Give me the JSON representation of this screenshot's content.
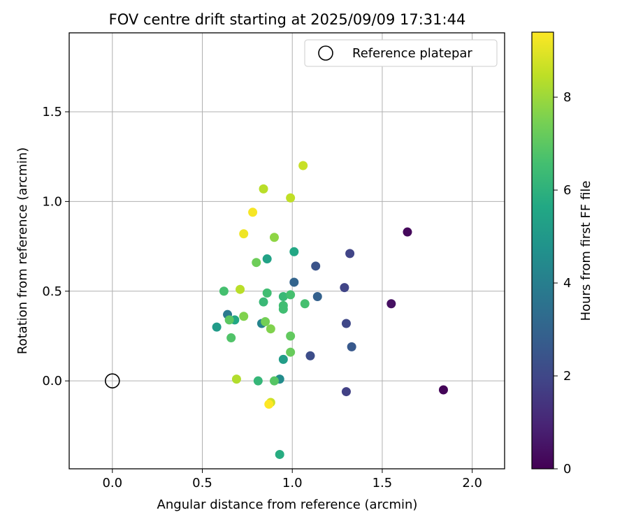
{
  "chart_data": {
    "type": "scatter",
    "title": "FOV centre drift starting at 2025/09/09 17:31:44",
    "xlabel": "Angular distance from reference (arcmin)",
    "ylabel": "Rotation from reference (arcmin)",
    "xlim": [
      -0.24,
      2.18
    ],
    "ylim": [
      -0.49,
      1.94
    ],
    "xticks": [
      0.0,
      0.5,
      1.0,
      1.5,
      2.0
    ],
    "xtick_labels": [
      "0.0",
      "0.5",
      "1.0",
      "1.5",
      "2.0"
    ],
    "yticks": [
      0.0,
      0.5,
      1.0,
      1.5
    ],
    "ytick_labels": [
      "0.0",
      "0.5",
      "1.0",
      "1.5"
    ],
    "grid": true,
    "legend": {
      "position": "top-right",
      "entries": [
        "Reference platepar"
      ]
    },
    "reference_point": {
      "x": 0.0,
      "y": 0.0,
      "label": "Reference platepar"
    },
    "colorbar": {
      "label": "Hours from first FF file",
      "min": 0,
      "max": 9.4,
      "ticks": [
        0,
        2,
        4,
        6,
        8
      ],
      "tick_labels": [
        "0",
        "2",
        "4",
        "6",
        "8"
      ],
      "colormap": "viridis"
    },
    "points": [
      {
        "x": 1.84,
        "y": -0.05,
        "c": 0.1
      },
      {
        "x": 1.64,
        "y": 0.83,
        "c": 0.2
      },
      {
        "x": 1.55,
        "y": 0.43,
        "c": 0.4
      },
      {
        "x": 1.3,
        "y": -0.06,
        "c": 1.8
      },
      {
        "x": 1.32,
        "y": 0.71,
        "c": 1.9
      },
      {
        "x": 1.29,
        "y": 0.52,
        "c": 1.9
      },
      {
        "x": 1.3,
        "y": 0.32,
        "c": 2.0
      },
      {
        "x": 1.33,
        "y": 0.19,
        "c": 2.6
      },
      {
        "x": 1.1,
        "y": 0.14,
        "c": 2.2
      },
      {
        "x": 1.13,
        "y": 0.64,
        "c": 2.4
      },
      {
        "x": 1.14,
        "y": 0.47,
        "c": 2.9
      },
      {
        "x": 1.01,
        "y": 0.55,
        "c": 3.0
      },
      {
        "x": 0.64,
        "y": 0.37,
        "c": 3.8
      },
      {
        "x": 0.83,
        "y": 0.32,
        "c": 4.2
      },
      {
        "x": 0.93,
        "y": 0.01,
        "c": 4.5
      },
      {
        "x": 0.58,
        "y": 0.3,
        "c": 5.1
      },
      {
        "x": 0.95,
        "y": 0.12,
        "c": 5.2
      },
      {
        "x": 0.86,
        "y": 0.68,
        "c": 5.4
      },
      {
        "x": 1.01,
        "y": 0.72,
        "c": 5.6
      },
      {
        "x": 0.68,
        "y": 0.34,
        "c": 5.6
      },
      {
        "x": 0.93,
        "y": -0.41,
        "c": 5.8
      },
      {
        "x": 0.81,
        "y": 0.0,
        "c": 6.2
      },
      {
        "x": 0.95,
        "y": 0.47,
        "c": 6.3
      },
      {
        "x": 0.84,
        "y": 0.44,
        "c": 6.3
      },
      {
        "x": 0.86,
        "y": 0.49,
        "c": 6.5
      },
      {
        "x": 0.95,
        "y": 0.42,
        "c": 6.5
      },
      {
        "x": 0.95,
        "y": 0.4,
        "c": 6.5
      },
      {
        "x": 0.62,
        "y": 0.5,
        "c": 6.6
      },
      {
        "x": 1.07,
        "y": 0.43,
        "c": 6.6
      },
      {
        "x": 0.99,
        "y": 0.48,
        "c": 6.6
      },
      {
        "x": 0.66,
        "y": 0.24,
        "c": 6.8
      },
      {
        "x": 0.9,
        "y": 0.0,
        "c": 6.9
      },
      {
        "x": 0.65,
        "y": 0.34,
        "c": 7.0
      },
      {
        "x": 0.99,
        "y": 0.25,
        "c": 7.1
      },
      {
        "x": 0.99,
        "y": 0.16,
        "c": 7.2
      },
      {
        "x": 0.8,
        "y": 0.66,
        "c": 7.3
      },
      {
        "x": 0.85,
        "y": 0.33,
        "c": 7.4
      },
      {
        "x": 0.88,
        "y": 0.29,
        "c": 7.6
      },
      {
        "x": 0.73,
        "y": 0.36,
        "c": 7.6
      },
      {
        "x": 0.9,
        "y": 0.8,
        "c": 7.8
      },
      {
        "x": 0.69,
        "y": 0.01,
        "c": 8.3
      },
      {
        "x": 0.71,
        "y": 0.51,
        "c": 8.4
      },
      {
        "x": 0.84,
        "y": 1.07,
        "c": 8.4
      },
      {
        "x": 0.99,
        "y": 1.02,
        "c": 8.5
      },
      {
        "x": 1.06,
        "y": 1.2,
        "c": 8.6
      },
      {
        "x": 0.88,
        "y": -0.12,
        "c": 8.7
      },
      {
        "x": 0.73,
        "y": 0.82,
        "c": 9.2
      },
      {
        "x": 0.78,
        "y": 0.94,
        "c": 9.3
      },
      {
        "x": 0.87,
        "y": -0.13,
        "c": 9.4
      }
    ]
  }
}
